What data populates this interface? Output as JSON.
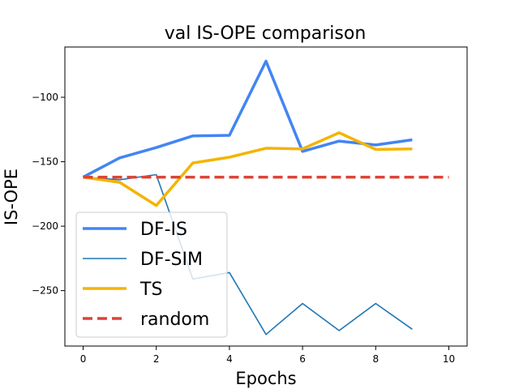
{
  "chart_data": {
    "type": "line",
    "title": "val IS-OPE comparison",
    "xlabel": "Epochs",
    "ylabel": "IS-OPE",
    "xlim": [
      -0.5,
      10.5
    ],
    "ylim": [
      -293,
      -61
    ],
    "xticks": [
      0,
      2,
      4,
      6,
      8,
      10
    ],
    "yticks": [
      -250,
      -200,
      -150,
      -100
    ],
    "ytick_labels": [
      "−250",
      "−200",
      "−150",
      "−100"
    ],
    "grid": false,
    "legend_position": "lower-left",
    "series": [
      {
        "name": "DF-IS",
        "color": "#4285F4",
        "style": "solid-thick",
        "x": [
          0,
          1,
          2,
          3,
          4,
          5,
          6,
          7,
          8,
          9
        ],
        "y": [
          -162,
          -147,
          -139,
          -130,
          -129.5,
          -72,
          -142,
          -134,
          -137,
          -133
        ]
      },
      {
        "name": "DF-SIM",
        "color": "#1F77B4",
        "style": "solid-thin",
        "x": [
          0,
          1,
          2,
          3,
          4,
          5,
          6,
          7,
          8,
          9
        ],
        "y": [
          -162,
          -164,
          -160,
          -241,
          -236,
          -284,
          -260,
          -281,
          -260,
          -280
        ]
      },
      {
        "name": "TS",
        "color": "#F4B400",
        "style": "solid-thick",
        "x": [
          0,
          1,
          2,
          3,
          4,
          5,
          6,
          7,
          8,
          9
        ],
        "y": [
          -162,
          -166,
          -184,
          -151,
          -146.5,
          -139.5,
          -140,
          -127.5,
          -140.5,
          -140
        ]
      },
      {
        "name": "random",
        "color": "#DB4437",
        "style": "dashed-thick",
        "x": [
          0,
          10
        ],
        "y": [
          -162,
          -162
        ]
      }
    ]
  }
}
